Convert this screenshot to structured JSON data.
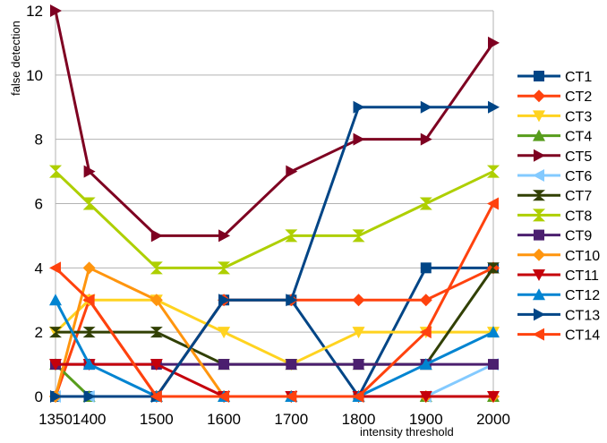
{
  "chart_data": {
    "type": "line",
    "title": "",
    "xlabel": "intensity threshold",
    "ylabel": "false detection",
    "x": [
      1350,
      1400,
      1500,
      1600,
      1700,
      1800,
      1900,
      2000
    ],
    "x_tick_labels": [
      "1350",
      "1400",
      "1500",
      "1600",
      "1700",
      "1800",
      "1900",
      "2000"
    ],
    "y_ticks": [
      0,
      2,
      4,
      6,
      8,
      10,
      12
    ],
    "y_tick_labels": [
      "0",
      "2",
      "4",
      "6",
      "8",
      "10",
      "12"
    ],
    "ylim": [
      0,
      12
    ],
    "grid": "horizontal",
    "legend_position": "right",
    "series": [
      {
        "name": "CT1",
        "color": "#004586",
        "marker": "square",
        "values": [
          0,
          0,
          0,
          3,
          3,
          0,
          4,
          4
        ]
      },
      {
        "name": "CT2",
        "color": "#ff420e",
        "marker": "diamond",
        "values": [
          0,
          3,
          0,
          3,
          3,
          3,
          3,
          4
        ]
      },
      {
        "name": "CT3",
        "color": "#ffd320",
        "marker": "triangle-down",
        "values": [
          2,
          3,
          3,
          2,
          1,
          2,
          2,
          2
        ]
      },
      {
        "name": "CT4",
        "color": "#579d1c",
        "marker": "triangle-up",
        "values": [
          1,
          0,
          0,
          0,
          0,
          0,
          0,
          0
        ]
      },
      {
        "name": "CT5",
        "color": "#7e0021",
        "marker": "triangle-right",
        "values": [
          12,
          7,
          5,
          5,
          7,
          8,
          8,
          11
        ]
      },
      {
        "name": "CT6",
        "color": "#83caff",
        "marker": "triangle-left",
        "values": [
          0,
          0,
          0,
          0,
          0,
          0,
          0,
          1
        ]
      },
      {
        "name": "CT7",
        "color": "#314004",
        "marker": "bowtie",
        "values": [
          2,
          2,
          2,
          1,
          1,
          1,
          1,
          4
        ]
      },
      {
        "name": "CT8",
        "color": "#aecf00",
        "marker": "hourglass",
        "values": [
          7,
          6,
          4,
          4,
          5,
          5,
          6,
          7
        ]
      },
      {
        "name": "CT9",
        "color": "#4b1f6f",
        "marker": "square",
        "values": [
          1,
          1,
          1,
          1,
          1,
          1,
          1,
          1
        ]
      },
      {
        "name": "CT10",
        "color": "#ff950e",
        "marker": "diamond",
        "values": [
          0,
          4,
          3,
          0,
          0,
          0,
          0,
          0
        ]
      },
      {
        "name": "CT11",
        "color": "#c5000b",
        "marker": "triangle-down",
        "values": [
          1,
          1,
          1,
          0,
          0,
          0,
          0,
          0
        ]
      },
      {
        "name": "CT12",
        "color": "#0084d1",
        "marker": "triangle-up",
        "values": [
          3,
          1,
          0,
          0,
          0,
          0,
          1,
          2
        ]
      },
      {
        "name": "CT13",
        "color": "#004586",
        "marker": "triangle-right",
        "values": [
          0,
          0,
          0,
          3,
          3,
          9,
          9,
          9
        ]
      },
      {
        "name": "CT14",
        "color": "#ff420e",
        "marker": "triangle-left",
        "values": [
          4,
          3,
          0,
          0,
          0,
          0,
          2,
          6
        ]
      }
    ]
  }
}
